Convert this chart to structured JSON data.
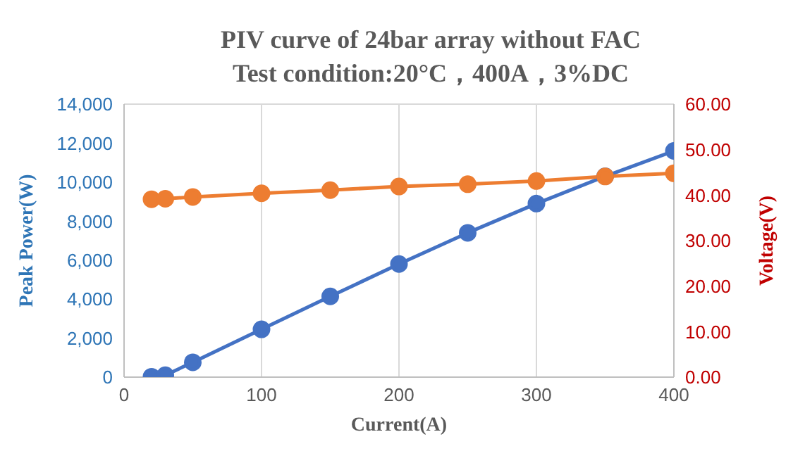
{
  "chart_data": {
    "type": "line",
    "title": "PIV curve of 24bar array without FAC",
    "subtitle": "Test condition:20°C，400A，3%DC",
    "xlabel": "Current(A)",
    "ylabel": "Peak Power(W)",
    "y2label": "Voltage(V)",
    "x": [
      20,
      30,
      50,
      100,
      150,
      200,
      250,
      300,
      350,
      400
    ],
    "series": [
      {
        "color": "#4472c4",
        "values": [
          20,
          100,
          760,
          2450,
          4140,
          5800,
          7400,
          8900,
          10300,
          11600
        ]
      },
      {
        "color": "#ed7d31",
        "axis": "y2",
        "values": [
          39.1,
          39.2,
          39.6,
          40.4,
          41.1,
          41.9,
          42.4,
          43.1,
          44.1,
          44.8
        ]
      }
    ],
    "xlim": [
      0,
      400
    ],
    "xticks": [
      0,
      100,
      200,
      300,
      400
    ],
    "ylim": [
      0,
      14000
    ],
    "yticks": [
      0,
      {
        "value": 2000,
        "label": "2,000"
      },
      {
        "value": 4000,
        "label": "4,000"
      },
      {
        "value": 6000,
        "label": "6,000"
      },
      {
        "value": 8000,
        "label": "8,000"
      },
      {
        "value": 10000,
        "label": "10,000"
      },
      {
        "value": 12000,
        "label": "12,000"
      },
      {
        "value": 14000,
        "label": "14,000"
      }
    ],
    "y2lim": [
      0,
      60
    ],
    "y2ticks": [
      {
        "value": 0,
        "label": "0.00"
      },
      {
        "value": 10,
        "label": "10.00"
      },
      {
        "value": 20,
        "label": "20.00"
      },
      {
        "value": 30,
        "label": "30.00"
      },
      {
        "value": 40,
        "label": "40.00"
      },
      {
        "value": 50,
        "label": "50.00"
      },
      {
        "value": 60,
        "label": "60.00"
      }
    ],
    "grid": true,
    "legend": false,
    "marker": "circle",
    "line_style": "solid"
  }
}
